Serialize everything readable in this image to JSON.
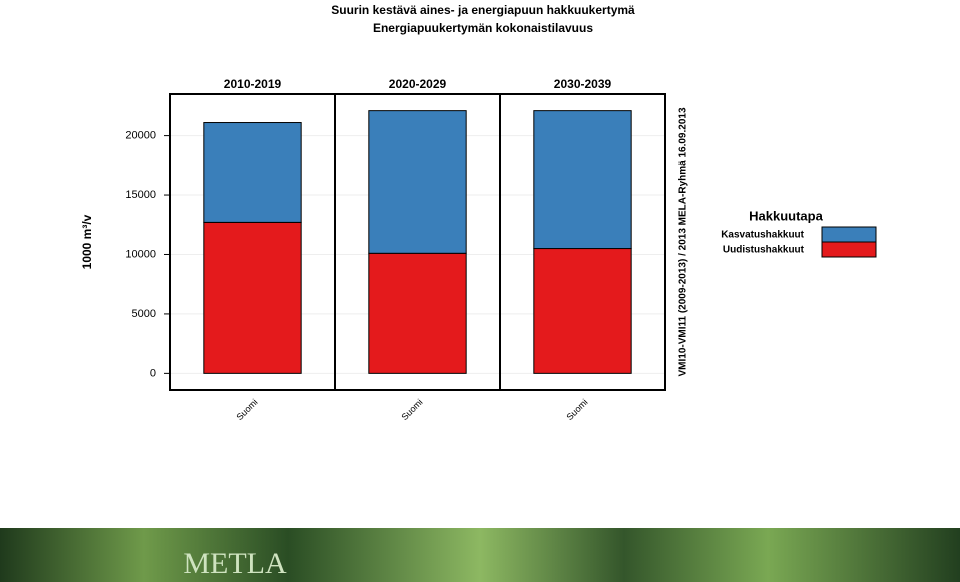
{
  "figure": {
    "title": "Suurin kestävä aines- ja energiapuun hakkuukertymä",
    "subtitle": "Energiapuukertymän kokonaistilavuus",
    "y_label": "1000 m³/v",
    "source": "VMI10-VMI11 (2009-2013) / 2013 MELA-Ryhmä 16.09.2013",
    "legend_title": "Hakkuutapa",
    "banner": "METLA"
  },
  "chart_data": [
    {
      "type": "bar",
      "stacked": true,
      "title": "2010-2019",
      "categories": [
        "Suomi"
      ],
      "ylim": [
        -1400,
        23500
      ],
      "yticks": [
        0,
        5000,
        10000,
        15000,
        20000
      ],
      "series": [
        {
          "name": "Kasvatushakkuut",
          "color": "#3a7fba",
          "values": [
            8400
          ]
        },
        {
          "name": "Uudistushakkuut",
          "color": "#e41a1c",
          "values": [
            12700
          ]
        }
      ]
    },
    {
      "type": "bar",
      "stacked": true,
      "title": "2020-2029",
      "categories": [
        "Suomi"
      ],
      "ylim": [
        -1400,
        23500
      ],
      "yticks": [
        0,
        5000,
        10000,
        15000,
        20000
      ],
      "series": [
        {
          "name": "Kasvatushakkuut",
          "color": "#3a7fba",
          "values": [
            12000
          ]
        },
        {
          "name": "Uudistushakkuut",
          "color": "#e41a1c",
          "values": [
            10100
          ]
        }
      ]
    },
    {
      "type": "bar",
      "stacked": true,
      "title": "2030-2039",
      "categories": [
        "Suomi"
      ],
      "ylim": [
        -1400,
        23500
      ],
      "yticks": [
        0,
        5000,
        10000,
        15000,
        20000
      ],
      "series": [
        {
          "name": "Kasvatushakkuut",
          "color": "#3a7fba",
          "values": [
            11600
          ]
        },
        {
          "name": "Uudistushakkuut",
          "color": "#e41a1c",
          "values": [
            10500
          ]
        }
      ]
    }
  ]
}
